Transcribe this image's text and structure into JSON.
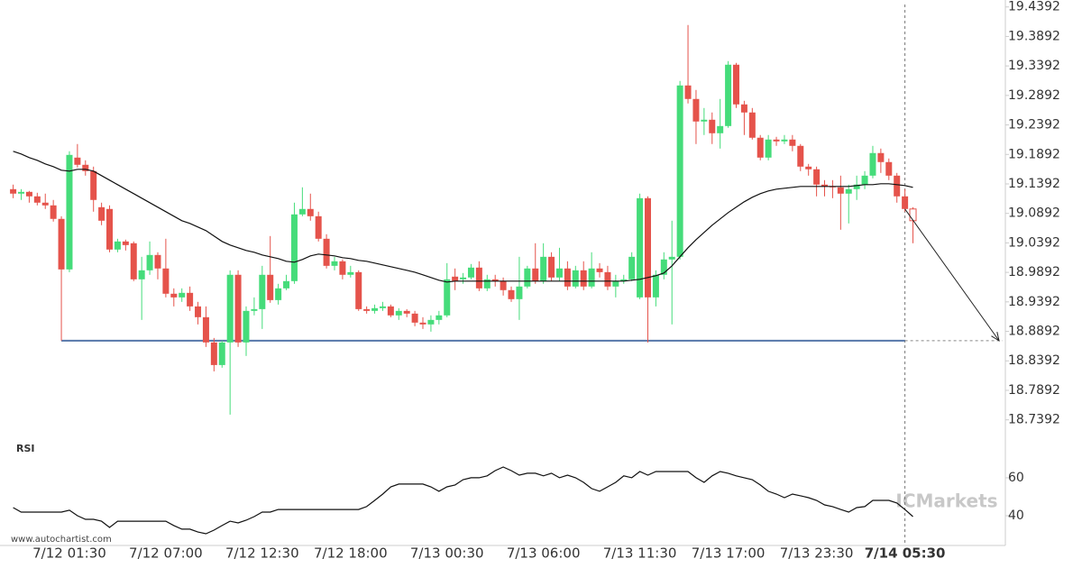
{
  "chart_data": {
    "type": "candlestick",
    "categories": [
      null,
      null,
      null,
      null,
      null,
      null,
      null,
      "7/12 01:30",
      null,
      null,
      null,
      null,
      null,
      null,
      null,
      null,
      null,
      null,
      null,
      "7/12 07:00",
      null,
      null,
      null,
      null,
      null,
      null,
      null,
      null,
      null,
      null,
      null,
      "7/12 12:30",
      null,
      null,
      null,
      null,
      null,
      null,
      null,
      null,
      null,
      null,
      "7/12 18:00",
      null,
      null,
      null,
      null,
      null,
      null,
      null,
      null,
      null,
      null,
      null,
      "7/13 00:30",
      null,
      null,
      null,
      null,
      null,
      null,
      null,
      null,
      null,
      null,
      null,
      "7/13 06:00",
      null,
      null,
      null,
      null,
      null,
      null,
      null,
      null,
      null,
      null,
      null,
      "7/13 11:30",
      null,
      null,
      null,
      null,
      null,
      null,
      null,
      null,
      null,
      null,
      "7/13 17:00",
      null,
      null,
      null,
      null,
      null,
      null,
      null,
      null,
      null,
      null,
      "7/13 23:30",
      null,
      null,
      null,
      null,
      null,
      null,
      null,
      null,
      null,
      null,
      "7/14 05:30",
      null
    ],
    "candles": [
      [
        19.1303,
        19.138,
        19.115,
        19.1227
      ],
      [
        19.1227,
        19.1303,
        19.112,
        19.1257
      ],
      [
        19.1257,
        19.1273,
        19.1074,
        19.1181
      ],
      [
        19.1181,
        19.1242,
        19.1028,
        19.1074
      ],
      [
        19.1074,
        19.1227,
        19.0967,
        19.1028
      ],
      [
        19.1028,
        19.112,
        19.0753,
        19.0799
      ],
      [
        19.0799,
        19.0844,
        18.8734,
        18.9942
      ],
      [
        18.9942,
        19.1945,
        18.9896,
        19.1884
      ],
      [
        19.1838,
        19.2068,
        19.167,
        19.1716
      ],
      [
        19.1716,
        19.1792,
        19.1532,
        19.1609
      ],
      [
        19.1609,
        19.1685,
        19.0921,
        19.112
      ],
      [
        19.0997,
        19.1074,
        19.0692,
        19.0768
      ],
      [
        19.0967,
        19.1028,
        19.0233,
        19.0279
      ],
      [
        19.0279,
        19.0462,
        19.0233,
        19.0416
      ],
      [
        19.0416,
        19.0447,
        19.0263,
        19.0355
      ],
      [
        19.0386,
        19.0416,
        18.9744,
        18.9774
      ],
      [
        18.9774,
        19.0156,
        18.9086,
        18.9927
      ],
      [
        18.9927,
        19.0416,
        18.9851,
        19.0187
      ],
      [
        19.0187,
        19.0233,
        18.9774,
        18.9958
      ],
      [
        18.9958,
        19.0462,
        18.9468,
        18.953
      ],
      [
        18.953,
        18.9621,
        18.9315,
        18.9468
      ],
      [
        18.9468,
        18.9621,
        18.9392,
        18.9545
      ],
      [
        18.9545,
        18.9652,
        18.9239,
        18.9315
      ],
      [
        18.9315,
        18.9392,
        18.901,
        18.9132
      ],
      [
        18.9132,
        18.9315,
        18.8628,
        18.8704
      ],
      [
        18.8704,
        18.878,
        18.8214,
        18.8321
      ],
      [
        18.8321,
        18.8734,
        18.8276,
        18.8704
      ],
      [
        18.8704,
        18.9927,
        18.7481,
        18.9851
      ],
      [
        18.9851,
        18.9927,
        18.8628,
        18.8704
      ],
      [
        18.8704,
        18.9315,
        18.8475,
        18.9239
      ],
      [
        18.9239,
        18.9468,
        18.9163,
        18.9269
      ],
      [
        18.9269,
        19.0003,
        18.8933,
        18.9851
      ],
      [
        18.9851,
        19.0508,
        18.9377,
        18.9422
      ],
      [
        18.9422,
        18.9698,
        18.9346,
        18.9621
      ],
      [
        18.9621,
        18.9851,
        18.9591,
        18.9744
      ],
      [
        18.9744,
        19.1074,
        18.9698,
        19.0875
      ],
      [
        19.0875,
        19.1334,
        19.0844,
        19.0967
      ],
      [
        19.0967,
        19.1227,
        19.0768,
        19.0844
      ],
      [
        19.0844,
        19.0921,
        19.0416,
        19.0462
      ],
      [
        19.0462,
        19.0539,
        18.9958,
        19.0003
      ],
      [
        19.0003,
        19.0156,
        18.9927,
        19.008
      ],
      [
        19.008,
        19.0111,
        18.9774,
        18.9851
      ],
      [
        18.9851,
        19.0003,
        18.9805,
        18.9896
      ],
      [
        18.9896,
        18.9927,
        18.9239,
        18.9269
      ],
      [
        18.9269,
        18.9315,
        18.9193,
        18.9239
      ],
      [
        18.9239,
        18.9346,
        18.9193,
        18.9285
      ],
      [
        18.9285,
        18.9392,
        18.9239,
        18.9315
      ],
      [
        18.9315,
        18.9346,
        18.9132,
        18.9163
      ],
      [
        18.9163,
        18.9285,
        18.9086,
        18.9239
      ],
      [
        18.9239,
        18.9269,
        18.9132,
        18.9193
      ],
      [
        18.9193,
        18.9239,
        18.8979,
        18.904
      ],
      [
        18.904,
        18.9132,
        18.8933,
        18.901
      ],
      [
        18.901,
        18.9163,
        18.8887,
        18.9086
      ],
      [
        18.9086,
        18.9239,
        18.901,
        18.9163
      ],
      [
        18.9163,
        19.0049,
        18.9132,
        18.9774
      ],
      [
        18.982,
        18.9958,
        18.9591,
        18.9744
      ],
      [
        18.9774,
        18.9881,
        18.9698,
        18.9805
      ],
      [
        18.9805,
        19.0034,
        18.9774,
        18.9973
      ],
      [
        18.9973,
        19.008,
        18.9575,
        18.9621
      ],
      [
        18.9621,
        18.9851,
        18.9575,
        18.9774
      ],
      [
        18.9774,
        18.9851,
        18.9652,
        18.9744
      ],
      [
        18.9744,
        18.9805,
        18.9499,
        18.9591
      ],
      [
        18.9591,
        18.9652,
        18.9392,
        18.9438
      ],
      [
        18.9438,
        19.0156,
        18.9086,
        18.9652
      ],
      [
        18.9652,
        19.0003,
        18.9621,
        18.9958
      ],
      [
        18.9958,
        19.0386,
        18.9698,
        18.9744
      ],
      [
        18.9744,
        19.0386,
        18.9698,
        19.0156
      ],
      [
        19.0156,
        19.0233,
        18.9744,
        18.9805
      ],
      [
        18.9805,
        19.0309,
        18.9744,
        18.9958
      ],
      [
        18.9958,
        19.008,
        18.9591,
        18.9652
      ],
      [
        18.9652,
        19.0003,
        18.9621,
        18.9927
      ],
      [
        18.9927,
        19.008,
        18.9591,
        18.9652
      ],
      [
        18.9652,
        19.0233,
        18.9621,
        18.9958
      ],
      [
        18.9958,
        19.0049,
        18.9805,
        18.9896
      ],
      [
        18.9896,
        19.0003,
        18.9591,
        18.9652
      ],
      [
        18.9652,
        18.9851,
        18.9468,
        18.9744
      ],
      [
        18.9744,
        18.9851,
        18.9698,
        18.9774
      ],
      [
        18.9774,
        19.0233,
        18.9744,
        19.0156
      ],
      [
        18.9468,
        19.1227,
        18.9438,
        19.115
      ],
      [
        19.115,
        19.1181,
        18.8704,
        18.9468
      ],
      [
        18.9468,
        18.9927,
        18.9315,
        18.9851
      ],
      [
        18.9851,
        19.0233,
        18.9774,
        19.0111
      ],
      [
        19.0111,
        19.0768,
        18.901,
        19.0156
      ],
      [
        19.0156,
        19.3138,
        19.0111,
        19.3061
      ],
      [
        19.3061,
        19.4086,
        19.2756,
        19.2832
      ],
      [
        19.2832,
        19.2985,
        19.2068,
        19.245
      ],
      [
        19.245,
        19.2679,
        19.2221,
        19.248
      ],
      [
        19.248,
        19.2603,
        19.2068,
        19.2251
      ],
      [
        19.2251,
        19.2832,
        19.1991,
        19.2373
      ],
      [
        19.2373,
        19.3474,
        19.2343,
        19.3413
      ],
      [
        19.3413,
        19.3444,
        19.2679,
        19.274
      ],
      [
        19.274,
        19.2801,
        19.2221,
        19.2603
      ],
      [
        19.2603,
        19.2679,
        19.2144,
        19.2175
      ],
      [
        19.2175,
        19.2221,
        19.1792,
        19.1838
      ],
      [
        19.1838,
        19.2221,
        19.1792,
        19.2144
      ],
      [
        19.2144,
        19.219,
        19.2037,
        19.2113
      ],
      [
        19.2113,
        19.2221,
        19.2068,
        19.2144
      ],
      [
        19.2144,
        19.2221,
        19.1945,
        19.2037
      ],
      [
        19.2037,
        19.2068,
        19.1609,
        19.1685
      ],
      [
        19.1685,
        19.1731,
        19.1532,
        19.164
      ],
      [
        19.164,
        19.1685,
        19.1181,
        19.138
      ],
      [
        19.138,
        19.1456,
        19.1181,
        19.1349
      ],
      [
        19.1349,
        19.1456,
        19.115,
        19.1334
      ],
      [
        19.1334,
        19.1532,
        19.0615,
        19.1227
      ],
      [
        19.1227,
        19.138,
        19.0722,
        19.1303
      ],
      [
        19.1303,
        19.1532,
        19.112,
        19.138
      ],
      [
        19.138,
        19.1609,
        19.1303,
        19.1532
      ],
      [
        19.1532,
        19.2037,
        19.1487,
        19.1915
      ],
      [
        19.1915,
        19.1991,
        19.1578,
        19.1762
      ],
      [
        19.1762,
        19.1823,
        19.1456,
        19.1532
      ],
      [
        19.1532,
        19.1578,
        19.1074,
        19.1181
      ],
      [
        19.1181,
        19.1303,
        19.0921,
        19.0967
      ],
      [
        19.0967,
        19.0997,
        19.0386,
        19.0768
      ]
    ],
    "ma": [
      19.1945,
      19.1899,
      19.1838,
      19.1792,
      19.1731,
      19.1685,
      19.1624,
      19.1609,
      19.164,
      19.164,
      19.1609,
      19.1532,
      19.1456,
      19.138,
      19.1303,
      19.1227,
      19.115,
      19.1074,
      19.0997,
      19.0921,
      19.0844,
      19.0768,
      19.0722,
      19.0661,
      19.06,
      19.0508,
      19.0416,
      19.0355,
      19.0309,
      19.0263,
      19.0233,
      19.0187,
      19.0156,
      19.0126,
      19.008,
      19.0065,
      19.0111,
      19.0172,
      19.0202,
      19.0187,
      19.0172,
      19.0141,
      19.0126,
      19.0095,
      19.008,
      19.0049,
      19.0019,
      18.9988,
      18.9958,
      18.9927,
      18.9896,
      18.9851,
      18.9805,
      18.9759,
      18.9728,
      18.9744,
      18.9744,
      18.9744,
      18.9744,
      18.9744,
      18.9744,
      18.9744,
      18.9744,
      18.9744,
      18.9744,
      18.9744,
      18.9744,
      18.9744,
      18.9744,
      18.9744,
      18.9744,
      18.9744,
      18.9744,
      18.9744,
      18.9744,
      18.9744,
      18.9744,
      18.9759,
      18.9774,
      18.9805,
      18.9835,
      18.9881,
      19.0003,
      19.0156,
      19.0309,
      19.0447,
      19.0569,
      19.0692,
      19.0799,
      19.0906,
      19.0997,
      19.1089,
      19.1165,
      19.1227,
      19.1273,
      19.1303,
      19.1318,
      19.1334,
      19.1349,
      19.1349,
      19.1349,
      19.1349,
      19.1349,
      19.1349,
      19.1349,
      19.1364,
      19.138,
      19.138,
      19.1395,
      19.1395,
      19.138,
      19.1364,
      19.1334
    ],
    "ylim": [
      18.702,
      19.451
    ],
    "yticks": [
      19.4392,
      19.3892,
      19.3392,
      19.2892,
      19.2392,
      19.1892,
      19.1392,
      19.0892,
      19.0392,
      18.9892,
      18.9392,
      18.8892,
      18.8392,
      18.7892,
      18.7392
    ],
    "support": 18.8734,
    "colors": {
      "up": "#45dc7a",
      "down": "#e5534b",
      "ma": "#111111",
      "support": "#5577aa",
      "arrow": "#222222",
      "rsi": "#111111"
    },
    "rsi": {
      "title": "RSI",
      "values": [
        44.3,
        41.9,
        41.9,
        41.9,
        41.9,
        41.9,
        41.9,
        42.9,
        40,
        38.1,
        38.1,
        37.1,
        33.8,
        37.1,
        37.1,
        37.1,
        37.1,
        37.1,
        37.1,
        37.1,
        34.8,
        32.9,
        32.9,
        31.4,
        30.5,
        32.4,
        34.8,
        37.1,
        36.2,
        37.6,
        39.5,
        41.9,
        41.9,
        43.3,
        43.3,
        43.3,
        43.3,
        43.3,
        43.3,
        43.3,
        43.3,
        43.3,
        43.3,
        43.3,
        44.8,
        48.1,
        51.4,
        55.2,
        56.7,
        56.7,
        56.7,
        56.7,
        55.2,
        52.9,
        55.2,
        56.2,
        59,
        60,
        60,
        61,
        63.8,
        65.7,
        63.8,
        61.4,
        62.4,
        62.4,
        61,
        62.4,
        60,
        61.4,
        60,
        57.6,
        54.3,
        52.9,
        55.2,
        57.6,
        61,
        60,
        63.3,
        61.4,
        63.3,
        63.3,
        63.3,
        63.3,
        63.3,
        60,
        57.6,
        61,
        63.3,
        62.4,
        61,
        60,
        59,
        56.2,
        52.9,
        51.4,
        49.5,
        51.4,
        50.5,
        49.5,
        48.1,
        45.7,
        44.8,
        43.3,
        41.9,
        44.3,
        44.8,
        48.1,
        48.1,
        48.1,
        46.7,
        43.3,
        39.5
      ],
      "ylim": [
        24.3,
        79
      ],
      "yticks": [
        40,
        60
      ]
    },
    "watermark": "www.autochartist.com",
    "brand": "ICMarkets"
  }
}
